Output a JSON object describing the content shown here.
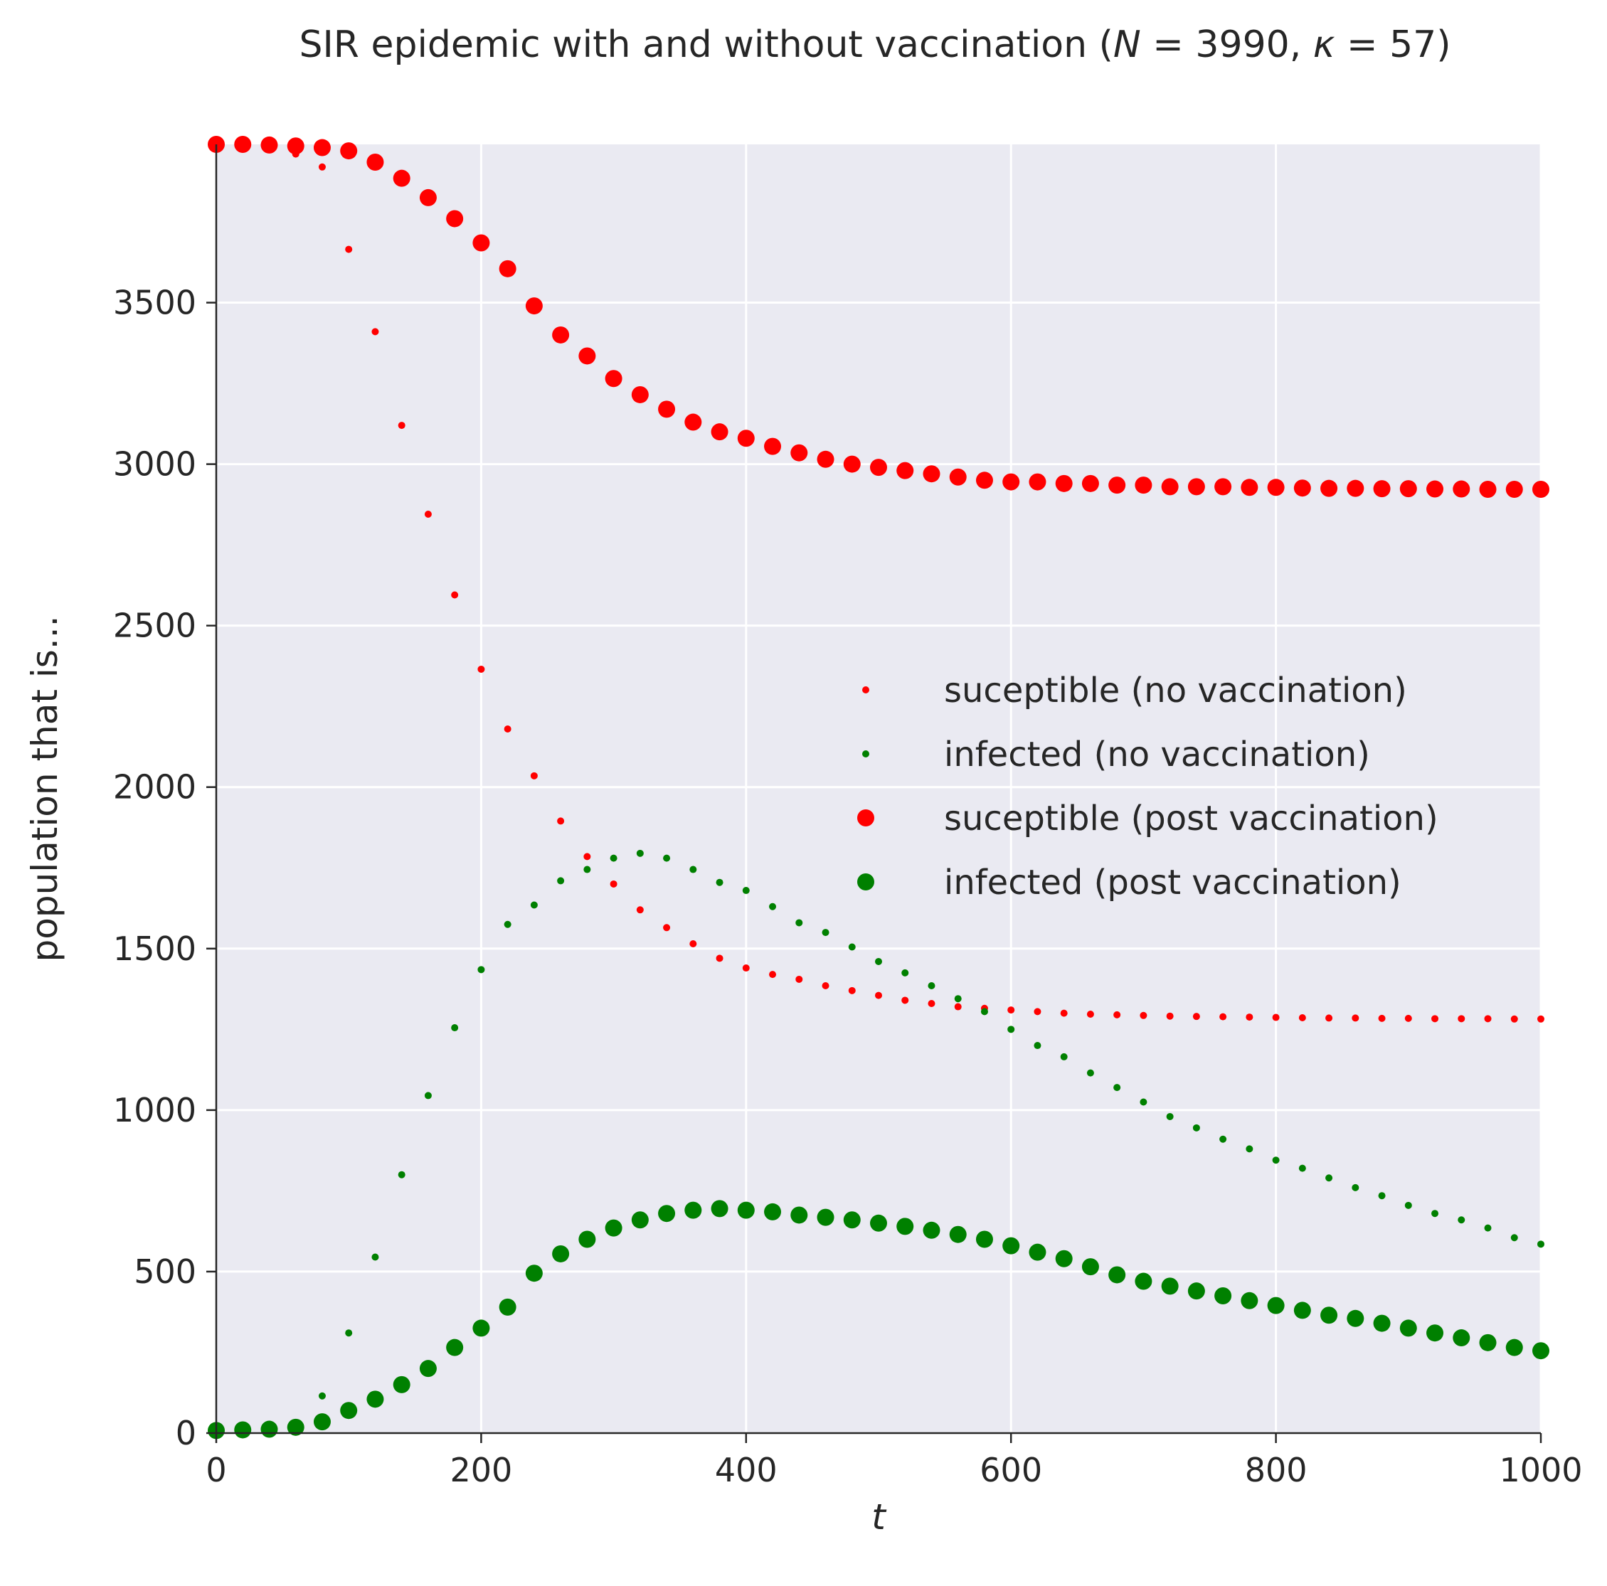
{
  "chart_data": {
    "type": "scatter",
    "title": "SIR epidemic with and without vaccination (N = 3990, κ = 57)",
    "title_parts": {
      "prefix": "SIR epidemic with and without vaccination (",
      "N_sym": "N",
      "N_eq": " = 3990, ",
      "k_sym": "κ",
      "k_eq": " = 57)"
    },
    "xlabel": "t",
    "ylabel": "population that is...",
    "xlim": [
      0,
      1000
    ],
    "ylim": [
      0,
      3990
    ],
    "xticks": [
      0,
      200,
      400,
      600,
      800,
      1000
    ],
    "yticks": [
      0,
      500,
      1000,
      1500,
      2000,
      2500,
      3000,
      3500
    ],
    "grid": true,
    "legend_position": "center-right",
    "x": [
      0,
      20,
      40,
      60,
      80,
      100,
      120,
      140,
      160,
      180,
      200,
      220,
      240,
      260,
      280,
      300,
      320,
      340,
      360,
      380,
      400,
      420,
      440,
      460,
      480,
      500,
      520,
      540,
      560,
      580,
      600,
      620,
      640,
      660,
      680,
      700,
      720,
      740,
      760,
      780,
      800,
      820,
      840,
      860,
      880,
      900,
      920,
      940,
      960,
      980,
      1000
    ],
    "series": [
      {
        "name": "suceptible (no vaccination)",
        "color": "#ff0000",
        "marker": "small",
        "values": [
          3985,
          3982,
          3976,
          3960,
          3920,
          3665,
          3410,
          3120,
          2845,
          2595,
          2365,
          2180,
          2035,
          1895,
          1785,
          1700,
          1620,
          1565,
          1515,
          1470,
          1440,
          1420,
          1405,
          1385,
          1370,
          1355,
          1340,
          1330,
          1320,
          1315,
          1310,
          1305,
          1300,
          1297,
          1295,
          1293,
          1291,
          1290,
          1289,
          1288,
          1287,
          1286,
          1285,
          1285,
          1284,
          1284,
          1283,
          1283,
          1283,
          1282,
          1282
        ]
      },
      {
        "name": "infected (no vaccination)",
        "color": "#008000",
        "marker": "small",
        "values": [
          5,
          8,
          15,
          30,
          115,
          310,
          545,
          800,
          1045,
          1255,
          1435,
          1575,
          1635,
          1710,
          1745,
          1780,
          1795,
          1780,
          1745,
          1705,
          1680,
          1630,
          1580,
          1550,
          1505,
          1460,
          1425,
          1385,
          1345,
          1305,
          1250,
          1200,
          1165,
          1115,
          1070,
          1025,
          980,
          945,
          910,
          880,
          845,
          820,
          790,
          760,
          735,
          705,
          680,
          660,
          635,
          605,
          585
        ]
      },
      {
        "name": "suceptible (post vaccination)",
        "color": "#ff0000",
        "marker": "large",
        "values": [
          3990,
          3990,
          3988,
          3985,
          3980,
          3970,
          3935,
          3885,
          3825,
          3760,
          3685,
          3605,
          3490,
          3400,
          3335,
          3265,
          3215,
          3170,
          3130,
          3100,
          3080,
          3055,
          3035,
          3015,
          3000,
          2990,
          2980,
          2970,
          2960,
          2950,
          2945,
          2945,
          2940,
          2940,
          2935,
          2935,
          2930,
          2930,
          2930,
          2928,
          2928,
          2926,
          2925,
          2925,
          2924,
          2924,
          2923,
          2923,
          2922,
          2922,
          2922
        ]
      },
      {
        "name": "infected (post vaccination)",
        "color": "#008000",
        "marker": "large",
        "values": [
          8,
          10,
          12,
          18,
          35,
          70,
          105,
          150,
          200,
          265,
          325,
          390,
          495,
          555,
          600,
          635,
          660,
          680,
          690,
          695,
          690,
          685,
          675,
          668,
          660,
          650,
          640,
          628,
          615,
          600,
          580,
          560,
          540,
          515,
          490,
          470,
          455,
          440,
          425,
          410,
          395,
          380,
          365,
          355,
          340,
          325,
          310,
          295,
          280,
          265,
          255
        ]
      }
    ]
  }
}
